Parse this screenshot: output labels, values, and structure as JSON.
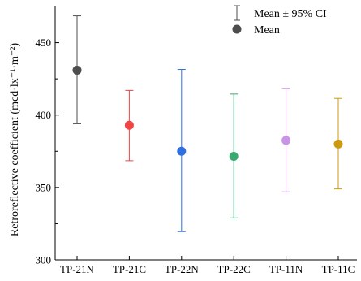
{
  "chart_data": {
    "type": "scatter",
    "title": "",
    "xlabel": "",
    "ylabel": "Retroreflective coefficient (mcd·lx⁻¹·m⁻²)",
    "ylim": [
      300,
      475
    ],
    "yticks": [
      300,
      350,
      400,
      450
    ],
    "categories": [
      "TP-21N",
      "TP-21C",
      "TP-22N",
      "TP-22C",
      "TP-11N",
      "TP-11C"
    ],
    "series": [
      {
        "name": "Mean",
        "values": [
          431,
          393,
          375,
          371.5,
          382.5,
          380
        ],
        "ci_lower": [
          394,
          368.5,
          319.5,
          329,
          347,
          349
        ],
        "ci_upper": [
          468.5,
          417,
          431.5,
          414.5,
          418.5,
          411.5
        ],
        "colors": [
          "#4d4d4d",
          "#f04545",
          "#2f6fe0",
          "#3aa870",
          "#c993e6",
          "#cc9a10"
        ]
      }
    ],
    "legend": {
      "position": "top-right",
      "items": [
        {
          "label": "Mean ± 95% CI",
          "marker": "error-bar"
        },
        {
          "label": "Mean",
          "marker": "dot"
        }
      ]
    },
    "grid": false
  }
}
